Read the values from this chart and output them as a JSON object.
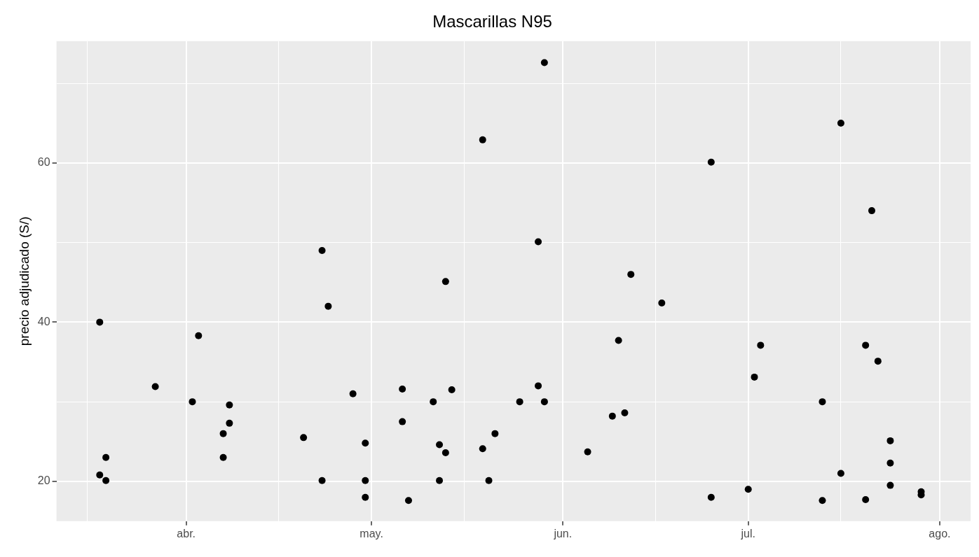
{
  "chart_data": {
    "type": "scatter",
    "title": "Mascarillas N95",
    "ylabel": "precio adjudicado (S/)",
    "x": [
      "--03-18",
      "--03-18",
      "--03-19",
      "--03-19",
      "--03-27",
      "--04-02",
      "--04-03",
      "--04-07",
      "--04-07",
      "--04-08",
      "--04-08",
      "--04-20",
      "--04-23",
      "--04-23",
      "--04-24",
      "--04-28",
      "--04-30",
      "--04-30",
      "--04-30",
      "--05-06",
      "--05-06",
      "--05-07",
      "--05-11",
      "--05-12",
      "--05-12",
      "--05-13",
      "--05-13",
      "--05-14",
      "--05-19",
      "--05-19",
      "--05-20",
      "--05-21",
      "--05-25",
      "--05-28",
      "--05-28",
      "--05-29",
      "--05-29",
      "--06-05",
      "--06-09",
      "--06-10",
      "--06-11",
      "--06-12",
      "--06-17",
      "--06-25",
      "--06-25",
      "--07-01",
      "--07-02",
      "--07-03",
      "--07-13",
      "--07-13",
      "--07-16",
      "--07-16",
      "--07-20",
      "--07-20",
      "--07-21",
      "--07-22",
      "--07-24",
      "--07-24",
      "--07-24",
      "--07-29",
      "--07-29"
    ],
    "series": [
      {
        "color": "#000000",
        "values": [
          40.0,
          20.8,
          23.0,
          20.1,
          31.9,
          30.0,
          38.3,
          26.0,
          23.0,
          27.3,
          29.6,
          25.5,
          49.0,
          20.1,
          42.0,
          31.0,
          24.8,
          20.1,
          18.0,
          31.6,
          27.5,
          17.6,
          30.0,
          24.6,
          20.1,
          45.1,
          23.6,
          31.5,
          62.9,
          24.1,
          20.1,
          26.0,
          30.0,
          50.1,
          32.0,
          72.6,
          30.0,
          23.7,
          28.2,
          37.7,
          28.6,
          46.0,
          42.4,
          60.1,
          18.0,
          19.0,
          33.1,
          37.1,
          30.0,
          17.6,
          65.0,
          21.0,
          37.1,
          17.7,
          54.0,
          35.1,
          25.1,
          22.3,
          19.5,
          18.7,
          18.3
        ]
      }
    ],
    "xlim": [
      "--03-11",
      "--08-06"
    ],
    "xticks": [
      {
        "value": "--03-16",
        "label": null
      },
      {
        "value": "--04-01",
        "label": "abr."
      },
      {
        "value": "--04-16",
        "label": null
      },
      {
        "value": "--05-01",
        "label": "may."
      },
      {
        "value": "--05-16",
        "label": null
      },
      {
        "value": "--06-01",
        "label": "jun."
      },
      {
        "value": "--06-16",
        "label": null
      },
      {
        "value": "--07-01",
        "label": "jul."
      },
      {
        "value": "--07-16",
        "label": null
      },
      {
        "value": "--08-01",
        "label": "ago."
      }
    ],
    "ylim": [
      15,
      75.3
    ],
    "yticks": [
      {
        "value": 30,
        "label": null
      },
      20,
      40,
      {
        "value": 50,
        "label": null
      },
      60,
      {
        "value": 70,
        "label": null
      }
    ],
    "grid": true,
    "legend": false,
    "marker": "circle"
  }
}
